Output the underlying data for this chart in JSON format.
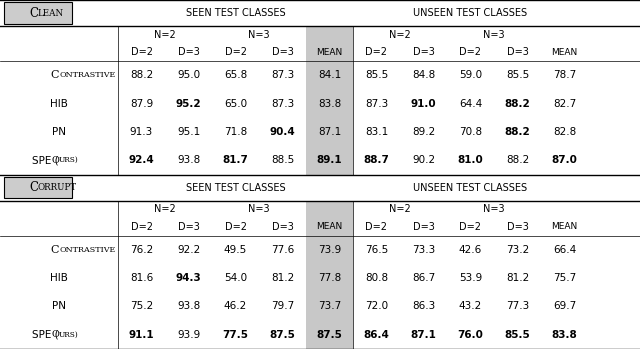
{
  "clean": {
    "label": "Clean",
    "rows": [
      {
        "method": "Contrastive",
        "seen": [
          88.2,
          95.0,
          65.8,
          87.3,
          84.1
        ],
        "unseen": [
          85.5,
          84.8,
          59.0,
          85.5,
          78.7
        ],
        "seen_bold": [
          false,
          false,
          false,
          false,
          false
        ],
        "unseen_bold": [
          false,
          false,
          false,
          false,
          false
        ]
      },
      {
        "method": "HIB",
        "seen": [
          87.9,
          95.2,
          65.0,
          87.3,
          83.8
        ],
        "unseen": [
          87.3,
          91.0,
          64.4,
          88.2,
          82.7
        ],
        "seen_bold": [
          false,
          true,
          false,
          false,
          false
        ],
        "unseen_bold": [
          false,
          true,
          false,
          true,
          false
        ]
      },
      {
        "method": "PN",
        "seen": [
          91.3,
          95.1,
          71.8,
          90.4,
          87.1
        ],
        "unseen": [
          83.1,
          89.2,
          70.8,
          88.2,
          82.8
        ],
        "seen_bold": [
          false,
          false,
          false,
          true,
          false
        ],
        "unseen_bold": [
          false,
          false,
          false,
          true,
          false
        ]
      },
      {
        "method": "SPE (ours)",
        "seen": [
          92.4,
          93.8,
          81.7,
          88.5,
          89.1
        ],
        "unseen": [
          88.7,
          90.2,
          81.0,
          88.2,
          87.0
        ],
        "seen_bold": [
          true,
          false,
          true,
          false,
          true
        ],
        "unseen_bold": [
          true,
          false,
          true,
          false,
          true
        ]
      }
    ]
  },
  "corrupt": {
    "label": "Corrupt",
    "rows": [
      {
        "method": "Contrastive",
        "seen": [
          76.2,
          92.2,
          49.5,
          77.6,
          73.9
        ],
        "unseen": [
          76.5,
          73.3,
          42.6,
          73.2,
          66.4
        ],
        "seen_bold": [
          false,
          false,
          false,
          false,
          false
        ],
        "unseen_bold": [
          false,
          false,
          false,
          false,
          false
        ]
      },
      {
        "method": "HIB",
        "seen": [
          81.6,
          94.3,
          54.0,
          81.2,
          77.8
        ],
        "unseen": [
          80.8,
          86.7,
          53.9,
          81.2,
          75.7
        ],
        "seen_bold": [
          false,
          true,
          false,
          false,
          false
        ],
        "unseen_bold": [
          false,
          false,
          false,
          false,
          false
        ]
      },
      {
        "method": "PN",
        "seen": [
          75.2,
          93.8,
          46.2,
          79.7,
          73.7
        ],
        "unseen": [
          72.0,
          86.3,
          43.2,
          77.3,
          69.7
        ],
        "seen_bold": [
          false,
          false,
          false,
          false,
          false
        ],
        "unseen_bold": [
          false,
          false,
          false,
          false,
          false
        ]
      },
      {
        "method": "SPE (ours)",
        "seen": [
          91.1,
          93.9,
          77.5,
          87.5,
          87.5
        ],
        "unseen": [
          86.4,
          87.1,
          76.0,
          85.5,
          83.8
        ],
        "seen_bold": [
          true,
          false,
          true,
          true,
          true
        ],
        "unseen_bold": [
          true,
          true,
          true,
          true,
          true
        ]
      }
    ]
  },
  "bg_label": "#cccccc",
  "bg_mean": "#c8c8c8",
  "small_caps_big": 8.0,
  "small_caps_small": 5.8,
  "data_fontsize": 7.5,
  "header_fontsize": 7.0
}
